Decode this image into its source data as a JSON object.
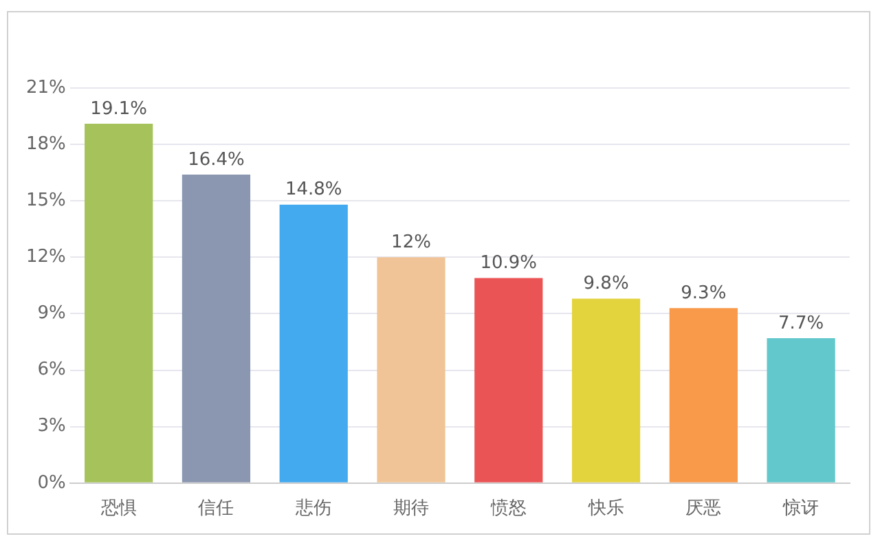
{
  "chart_data": {
    "type": "bar",
    "categories": [
      "恐惧",
      "信任",
      "悲伤",
      "期待",
      "愤怒",
      "快乐",
      "厌恶",
      "惊讶"
    ],
    "values": [
      19.1,
      16.4,
      14.8,
      12,
      10.9,
      9.8,
      9.3,
      7.7
    ],
    "value_labels": [
      "19.1%",
      "16.4%",
      "14.8%",
      "12%",
      "10.9%",
      "9.8%",
      "9.3%",
      "7.7%"
    ],
    "colors": [
      "#a5c35a",
      "#8b97b0",
      "#43aaef",
      "#f0c497",
      "#ea5455",
      "#e3d43e",
      "#f89a4a",
      "#62c8cb"
    ],
    "ylim": [
      0,
      21
    ],
    "yticks": [
      {
        "value": 0,
        "label": "0%"
      },
      {
        "value": 3,
        "label": "3%"
      },
      {
        "value": 6,
        "label": "6%"
      },
      {
        "value": 9,
        "label": "9%"
      },
      {
        "value": 12,
        "label": "12%"
      },
      {
        "value": 15,
        "label": "15%"
      },
      {
        "value": 18,
        "label": "18%"
      },
      {
        "value": 21,
        "label": "21%"
      }
    ],
    "grid": "y",
    "legend": false
  }
}
